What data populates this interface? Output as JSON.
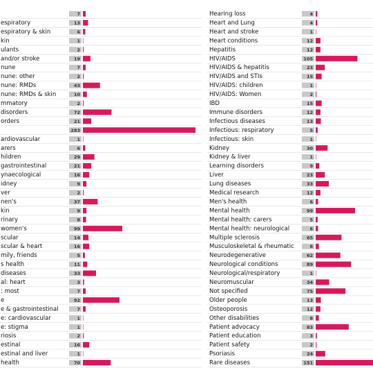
{
  "chart_data": [
    {
      "type": "bar",
      "orientation": "horizontal",
      "color": "#d6195c",
      "categories": [
        null,
        "espiratory",
        "espiratory & skin",
        "kin",
        "ulants",
        "and/or stroke",
        "nune",
        "nune: other",
        "nune: RMDs",
        "nune: RMDs & skin",
        "mmatory",
        "disorders",
        "orders",
        null,
        "ardiovascular",
        "arers",
        "hildren",
        "gastrointestinal",
        "ynaecological",
        "idney",
        "ver",
        "nen's",
        "kin",
        "rinary",
        "women's",
        "scular",
        "scular & heart",
        "mily, friends",
        "s health",
        "diseases",
        "al: heart",
        ": most",
        "e",
        "e & gastrointestinal",
        "e: cardiovascular",
        "e: stigma",
        "riosis",
        "estinal",
        "estinal and liver",
        "health"
      ],
      "values": [
        7,
        13,
        6,
        1,
        2,
        19,
        7,
        2,
        43,
        10,
        2,
        72,
        21,
        283,
        1,
        6,
        29,
        21,
        16,
        9,
        2,
        37,
        9,
        8,
        99,
        14,
        16,
        5,
        11,
        33,
        3,
        7,
        92,
        7,
        1,
        1,
        2,
        16,
        1,
        70
      ]
    },
    {
      "type": "bar",
      "orientation": "horizontal",
      "color": "#d6195c",
      "categories": [
        "Hearing loss",
        "Heart and Lung",
        "Heart and stroke",
        "Heart conditions",
        "Hepatitis",
        "HIV/AIDS",
        "HIV/AIDS & hepatitis",
        "HIV/AIDS and STIs",
        "HIV/AIDS: children",
        "HIV/AIDS: Women",
        "IBD",
        "Immune disorders",
        "Infectious diseases",
        "Infectious: respiratory",
        "Infectious: skin",
        "Kidney",
        "Kidney & liver",
        "Learning disorders",
        "Liver",
        "Lung diseases",
        "Medical research",
        "Men's health",
        "Mental health",
        "Mental health: carers",
        "Mental health: neurological",
        "Multiple sclerosis",
        "Musculoskeletal & rheumatic",
        "Neurodegenerative",
        "Neurological conditions",
        "Neurological/respiratory",
        "Neuromuscular",
        "Not specified",
        "Older people",
        "Osteoporosis",
        "Other disabilities",
        "Patient advocacy",
        "Patient education",
        "Patient safety",
        "Psoriasis",
        "Rare diseases"
      ],
      "values": [
        4,
        4,
        1,
        12,
        12,
        105,
        23,
        15,
        1,
        2,
        15,
        12,
        13,
        5,
        1,
        30,
        1,
        9,
        23,
        33,
        12,
        6,
        99,
        5,
        6,
        65,
        8,
        62,
        89,
        1,
        34,
        75,
        13,
        12,
        8,
        83,
        3,
        2,
        24,
        151
      ]
    }
  ]
}
